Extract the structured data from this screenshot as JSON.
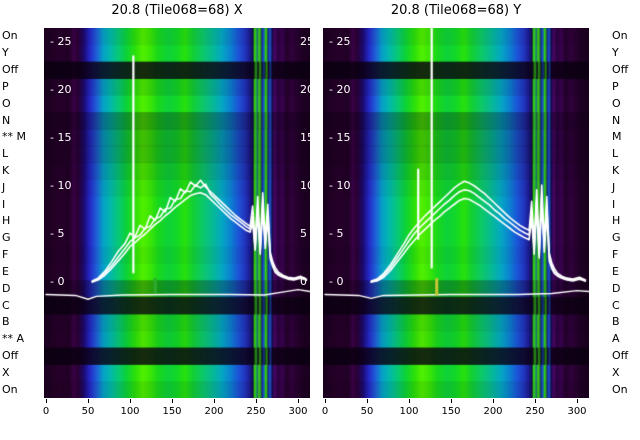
{
  "chart_data": {
    "type": "heatmap",
    "x_range": [
      0,
      315
    ],
    "x_axis": {
      "tick_values": [
        0,
        50,
        100,
        150,
        200,
        250,
        300
      ]
    },
    "y_axis": {
      "tick_values": [
        25,
        20,
        15,
        10,
        5,
        0
      ],
      "tick_prefix": "- "
    },
    "row_labels_left": [
      "On",
      "Y",
      "Off",
      "P",
      "O",
      "N",
      "** M",
      "L",
      "K",
      "J",
      "I",
      "H",
      "G",
      "F",
      "E",
      "D",
      "C",
      "B",
      "** A",
      "Off",
      "X",
      "On"
    ],
    "row_labels_right": [
      "On",
      "Y",
      "Off",
      "P",
      "O",
      "N",
      "M",
      "L",
      "K",
      "J",
      "I",
      "H",
      "G",
      "F",
      "E",
      "D",
      "C",
      "B",
      "A",
      "Off",
      "X",
      "On"
    ],
    "row_darkness": [
      0.06,
      0,
      0.82,
      0.1,
      0,
      0.3,
      0.2,
      0.2,
      0.12,
      0.05,
      0,
      0,
      0,
      0.04,
      0,
      0.3,
      0.8,
      0.1,
      0.05,
      0.82,
      0,
      0.08
    ],
    "colormap_stops": [
      [
        0.0,
        "#1c0020"
      ],
      [
        0.06,
        "#26012a"
      ],
      [
        0.095,
        "#220126"
      ],
      [
        0.112,
        "#3a0346"
      ],
      [
        0.128,
        "#2a0134"
      ],
      [
        0.15,
        "#1c0a70"
      ],
      [
        0.172,
        "#2428c8"
      ],
      [
        0.198,
        "#1f60d8"
      ],
      [
        0.222,
        "#06a0c8"
      ],
      [
        0.248,
        "#02b8ae"
      ],
      [
        0.278,
        "#07c87a"
      ],
      [
        0.308,
        "#0bd23c"
      ],
      [
        0.342,
        "#2ae00a"
      ],
      [
        0.372,
        "#52f000"
      ],
      [
        0.4,
        "#3ae606"
      ],
      [
        0.43,
        "#18d81c"
      ],
      [
        0.468,
        "#0ed23a"
      ],
      [
        0.5,
        "#12d826"
      ],
      [
        0.53,
        "#28e20c"
      ],
      [
        0.56,
        "#12d034"
      ],
      [
        0.598,
        "#0cc86a"
      ],
      [
        0.638,
        "#06b89a"
      ],
      [
        0.668,
        "#04a8c2"
      ],
      [
        0.7,
        "#0b84d0"
      ],
      [
        0.73,
        "#1b55d8"
      ],
      [
        0.755,
        "#2336c0"
      ],
      [
        0.775,
        "#1b1a8e"
      ],
      [
        0.786,
        "#121048"
      ],
      [
        0.792,
        "#35e80a"
      ],
      [
        0.8,
        "#1230b8"
      ],
      [
        0.808,
        "#3ce00a"
      ],
      [
        0.816,
        "#101060"
      ],
      [
        0.824,
        "#1848d0"
      ],
      [
        0.832,
        "#38e808"
      ],
      [
        0.84,
        "#0e1270"
      ],
      [
        0.849,
        "#2054cc"
      ],
      [
        0.857,
        "#0c0a40"
      ],
      [
        0.866,
        "#4a0668"
      ],
      [
        0.88,
        "#2c0240"
      ],
      [
        0.896,
        "#3a0350"
      ],
      [
        0.912,
        "#24012c"
      ],
      [
        0.932,
        "#30023c"
      ],
      [
        0.965,
        "#200126"
      ],
      [
        1.0,
        "#1a001e"
      ]
    ],
    "stripe_columns": [
      [
        248.5,
        251.5,
        "#35e80a"
      ],
      [
        253.5,
        256.5,
        "#3ce00a"
      ],
      [
        258.0,
        260.5,
        "#1848d0"
      ],
      [
        261.5,
        264.0,
        "#38e808"
      ],
      [
        266.0,
        268.5,
        "#2054cc"
      ]
    ],
    "series_x": [
      55,
      62,
      70,
      78,
      86,
      94,
      100,
      106,
      112,
      118,
      124,
      130,
      136,
      142,
      148,
      154,
      160,
      166,
      172,
      178,
      184,
      190,
      196,
      202,
      208,
      214,
      220,
      226,
      232,
      238,
      243,
      246,
      249,
      252,
      255,
      258,
      261,
      264,
      267,
      270,
      273,
      277,
      282,
      288,
      295,
      303,
      310
    ],
    "panels": [
      {
        "title": "20.8 (Tile068=68) X",
        "series": [
          {
            "name": "trace1",
            "y": [
              0.1,
              0.4,
              1.1,
              2.1,
              3.2,
              4.0,
              5.1,
              4.7,
              5.9,
              5.5,
              6.9,
              6.4,
              7.7,
              7.3,
              8.8,
              8.4,
              9.7,
              9.3,
              10.4,
              10.0,
              10.6,
              9.9,
              9.4,
              8.9,
              8.4,
              7.9,
              7.4,
              6.9,
              6.5,
              6.1,
              5.8,
              7.9,
              4.1,
              8.9,
              3.7,
              9.3,
              4.4,
              8.1,
              3.1,
              2.1,
              1.5,
              1.0,
              0.7,
              0.5,
              0.4,
              0.6,
              0.3
            ]
          },
          {
            "name": "trace2",
            "y": [
              0.0,
              0.3,
              0.9,
              1.7,
              2.6,
              3.5,
              4.2,
              4.6,
              4.9,
              5.6,
              5.8,
              6.6,
              6.8,
              7.6,
              7.7,
              8.6,
              8.7,
              9.5,
              9.4,
              10.1,
              9.8,
              10.2,
              9.1,
              8.6,
              8.0,
              7.5,
              7.0,
              6.6,
              6.2,
              5.8,
              5.5,
              6.8,
              3.6,
              7.9,
              3.2,
              8.2,
              3.9,
              7.2,
              2.7,
              1.8,
              1.2,
              0.8,
              0.6,
              0.4,
              0.3,
              0.5,
              0.2
            ]
          },
          {
            "name": "trace3",
            "y": [
              0.0,
              0.2,
              0.7,
              1.4,
              2.2,
              3.0,
              3.7,
              4.1,
              4.6,
              5.0,
              5.5,
              6.0,
              6.4,
              6.9,
              7.3,
              7.8,
              8.2,
              8.6,
              9.0,
              9.2,
              9.3,
              9.1,
              8.6,
              8.1,
              7.6,
              7.1,
              6.6,
              6.2,
              5.8,
              5.4,
              5.2,
              6.2,
              3.3,
              7.2,
              2.9,
              7.5,
              3.5,
              6.6,
              2.4,
              1.6,
              1.0,
              0.7,
              0.5,
              0.3,
              0.2,
              0.4,
              0.2
            ]
          }
        ],
        "baseline": [
          [
            0,
            -1.3
          ],
          [
            35,
            -1.4
          ],
          [
            50,
            -1.8
          ],
          [
            60,
            -1.5
          ],
          [
            90,
            -1.35
          ],
          [
            150,
            -1.3
          ],
          [
            220,
            -1.3
          ],
          [
            260,
            -1.35
          ],
          [
            285,
            -1.0
          ],
          [
            300,
            -0.8
          ],
          [
            315,
            -1.0
          ]
        ],
        "spikes": [
          {
            "x": 104,
            "v0": 1.0,
            "v1": 23.5
          }
        ],
        "marker": {
          "x": 130,
          "v0": -1.2,
          "v1": 0.4,
          "color": "#2eaa2e"
        },
        "right_tick_labels": true
      },
      {
        "title": "20.8 (Tile068=68) Y",
        "series": [
          {
            "name": "trace1",
            "y": [
              0.1,
              0.3,
              0.9,
              1.8,
              2.9,
              4.0,
              4.9,
              5.6,
              6.2,
              6.8,
              7.3,
              7.8,
              8.3,
              8.8,
              9.3,
              9.8,
              10.2,
              10.5,
              10.3,
              10.0,
              9.6,
              9.2,
              8.7,
              8.2,
              7.7,
              7.2,
              6.7,
              6.3,
              5.9,
              5.6,
              5.4,
              8.4,
              3.9,
              9.6,
              3.4,
              10.1,
              4.2,
              8.9,
              3.0,
              2.0,
              1.4,
              0.9,
              0.6,
              0.4,
              0.3,
              0.5,
              0.2
            ]
          },
          {
            "name": "trace2",
            "y": [
              0.0,
              0.2,
              0.7,
              1.5,
              2.5,
              3.5,
              4.3,
              5.0,
              5.6,
              6.1,
              6.6,
              7.1,
              7.6,
              8.1,
              8.5,
              9.0,
              9.4,
              9.6,
              9.5,
              9.2,
              8.8,
              8.4,
              8.0,
              7.5,
              7.1,
              6.6,
              6.2,
              5.8,
              5.4,
              5.1,
              4.9,
              7.5,
              3.4,
              8.6,
              2.9,
              9.0,
              3.6,
              7.9,
              2.6,
              1.7,
              1.1,
              0.7,
              0.5,
              0.3,
              0.2,
              0.4,
              0.1
            ]
          },
          {
            "name": "trace3",
            "y": [
              0.0,
              0.1,
              0.5,
              1.2,
              2.1,
              3.0,
              3.7,
              4.3,
              4.9,
              5.4,
              5.9,
              6.4,
              6.8,
              7.3,
              7.7,
              8.1,
              8.5,
              8.7,
              8.6,
              8.3,
              8.0,
              7.6,
              7.2,
              6.8,
              6.4,
              6.0,
              5.6,
              5.2,
              4.9,
              4.6,
              4.4,
              6.6,
              2.9,
              7.7,
              2.5,
              8.1,
              3.1,
              7.0,
              2.2,
              1.4,
              0.9,
              0.6,
              0.4,
              0.2,
              0.1,
              0.3,
              0.1
            ]
          }
        ],
        "baseline": [
          [
            0,
            -1.3
          ],
          [
            40,
            -1.4
          ],
          [
            55,
            -1.7
          ],
          [
            70,
            -1.4
          ],
          [
            150,
            -1.3
          ],
          [
            230,
            -1.3
          ],
          [
            270,
            -1.2
          ],
          [
            300,
            -0.9
          ],
          [
            315,
            -1.0
          ]
        ],
        "spikes": [
          {
            "x": 127,
            "v0": 1.5,
            "v1": 26.4
          },
          {
            "x": 111,
            "v0": 4.5,
            "v1": 11.7
          }
        ],
        "marker": {
          "x": 133,
          "v0": -1.4,
          "v1": 0.4,
          "color": "#c8c832"
        },
        "right_tick_labels": false
      }
    ]
  }
}
